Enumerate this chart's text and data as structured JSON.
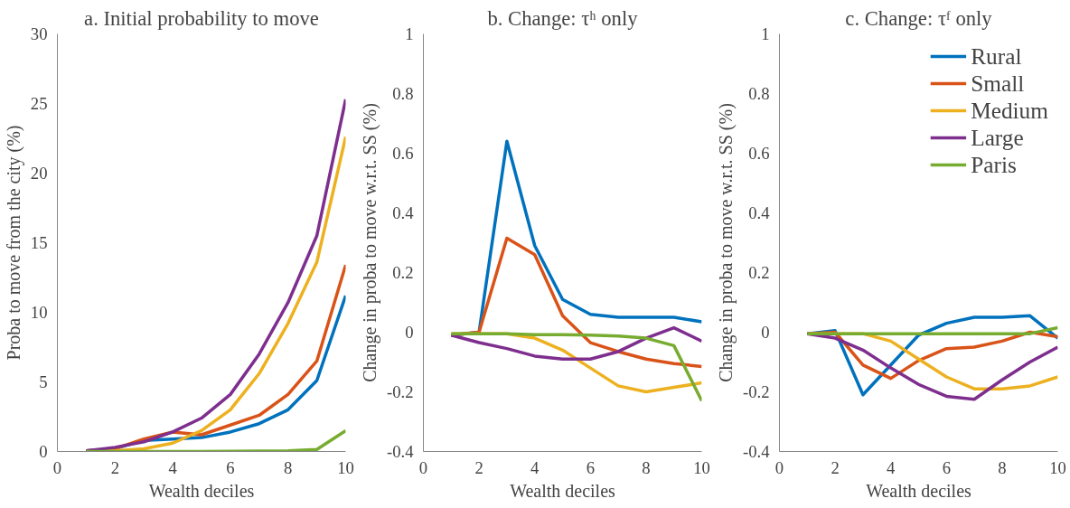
{
  "chart_data": [
    {
      "type": "line",
      "title": "a. Initial probability to move",
      "xlabel": "Wealth deciles",
      "ylabel": "Proba to move from the city (%)",
      "x": [
        1,
        2,
        3,
        4,
        5,
        6,
        7,
        8,
        9,
        10
      ],
      "xlim": [
        0,
        10
      ],
      "xticks": [
        0,
        2,
        4,
        6,
        8,
        10
      ],
      "ylim": [
        0,
        30
      ],
      "yticks": [
        0,
        5,
        10,
        15,
        20,
        25,
        30
      ],
      "grid": false,
      "legend": false,
      "series": [
        {
          "color": "#0072bd",
          "values": [
            0.05,
            0.2,
            0.8,
            0.9,
            1.0,
            1.4,
            2.0,
            3.0,
            5.1,
            11.2
          ]
        },
        {
          "color": "#d95319",
          "values": [
            0.05,
            0.2,
            0.9,
            1.4,
            1.2,
            1.9,
            2.6,
            4.1,
            6.5,
            13.4
          ]
        },
        {
          "color": "#edb120",
          "values": [
            0,
            0.05,
            0.2,
            0.6,
            1.5,
            3.0,
            5.6,
            9.2,
            13.6,
            22.6
          ]
        },
        {
          "color": "#7e2f8e",
          "values": [
            0.05,
            0.3,
            0.7,
            1.4,
            2.4,
            4.1,
            7.0,
            10.7,
            15.5,
            25.3
          ]
        },
        {
          "color": "#77ac30",
          "values": [
            0,
            0,
            0,
            0,
            0,
            0.02,
            0.03,
            0.05,
            0.15,
            1.5
          ]
        }
      ]
    },
    {
      "type": "line",
      "title": "b. Change: τʰ only",
      "xlabel": "Wealth deciles",
      "ylabel": "Change in proba to move w.r.t. SS (%)",
      "x": [
        1,
        2,
        3,
        4,
        5,
        6,
        7,
        8,
        9,
        10
      ],
      "xlim": [
        0,
        10
      ],
      "xticks": [
        0,
        2,
        4,
        6,
        8,
        10
      ],
      "ylim": [
        -0.4,
        1
      ],
      "yticks": [
        -0.4,
        -0.2,
        0,
        0.2,
        0.4,
        0.6,
        0.8,
        1
      ],
      "grid": false,
      "legend": false,
      "series": [
        {
          "color": "#0072bd",
          "values": [
            -0.01,
            0,
            0.64,
            0.29,
            0.11,
            0.06,
            0.05,
            0.05,
            0.05,
            0.035
          ]
        },
        {
          "color": "#d95319",
          "values": [
            -0.01,
            0,
            0.315,
            0.26,
            0.055,
            -0.035,
            -0.065,
            -0.09,
            -0.105,
            -0.115
          ]
        },
        {
          "color": "#edb120",
          "values": [
            -0.005,
            -0.005,
            -0.005,
            -0.02,
            -0.06,
            -0.12,
            -0.18,
            -0.2,
            -0.185,
            -0.17
          ]
        },
        {
          "color": "#7e2f8e",
          "values": [
            -0.01,
            -0.035,
            -0.055,
            -0.08,
            -0.09,
            -0.09,
            -0.065,
            -0.02,
            0.015,
            -0.03
          ]
        },
        {
          "color": "#77ac30",
          "values": [
            -0.005,
            -0.005,
            -0.005,
            -0.008,
            -0.008,
            -0.01,
            -0.013,
            -0.02,
            -0.045,
            -0.23
          ]
        }
      ]
    },
    {
      "type": "line",
      "title": "c. Change: τᶠ only",
      "xlabel": "Wealth deciles",
      "ylabel": "Change in proba to move w.r.t. SS (%)",
      "x": [
        1,
        2,
        3,
        4,
        5,
        6,
        7,
        8,
        9,
        10
      ],
      "xlim": [
        0,
        10
      ],
      "xticks": [
        0,
        2,
        4,
        6,
        8,
        10
      ],
      "ylim": [
        -0.4,
        1
      ],
      "yticks": [
        -0.4,
        -0.2,
        0,
        0.2,
        0.4,
        0.6,
        0.8,
        1
      ],
      "grid": false,
      "legend": "top right",
      "series": [
        {
          "name": "Rural",
          "color": "#0072bd",
          "values": [
            -0.005,
            0.005,
            -0.21,
            -0.11,
            -0.01,
            0.03,
            0.05,
            0.05,
            0.055,
            -0.02
          ]
        },
        {
          "name": "Small",
          "color": "#d95319",
          "values": [
            -0.005,
            0,
            -0.11,
            -0.155,
            -0.095,
            -0.055,
            -0.05,
            -0.03,
            0,
            -0.015
          ]
        },
        {
          "name": "Medium",
          "color": "#edb120",
          "values": [
            -0.005,
            -0.005,
            -0.005,
            -0.03,
            -0.09,
            -0.15,
            -0.19,
            -0.19,
            -0.18,
            -0.15
          ]
        },
        {
          "name": "Large",
          "color": "#7e2f8e",
          "values": [
            -0.005,
            -0.02,
            -0.06,
            -0.12,
            -0.175,
            -0.215,
            -0.225,
            -0.16,
            -0.1,
            -0.05
          ]
        },
        {
          "name": "Paris",
          "color": "#77ac30",
          "values": [
            -0.005,
            -0.005,
            -0.005,
            -0.005,
            -0.005,
            -0.005,
            -0.005,
            -0.005,
            -0.005,
            0.015
          ]
        }
      ]
    }
  ]
}
